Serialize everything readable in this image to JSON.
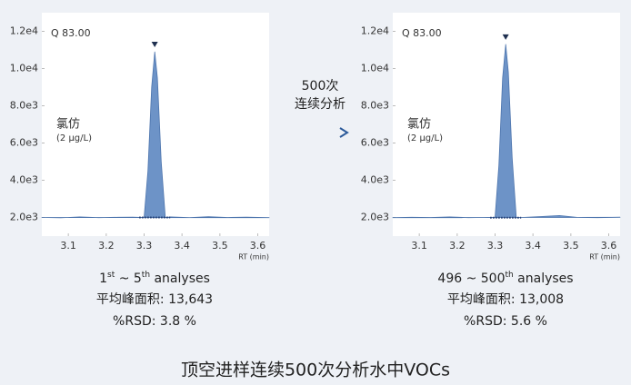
{
  "title": "顶空进样连续500次分析水中VOCs",
  "arrow_label": [
    "500次",
    "连续分析"
  ],
  "chart_data": [
    {
      "type": "area",
      "annotation": "Q 83.00",
      "compound": "氯仿",
      "concentration": "(2 μg/L)",
      "xlabel": "RT (min)",
      "x": [
        3.03,
        3.08,
        3.13,
        3.18,
        3.23,
        3.27,
        3.3,
        3.31,
        3.32,
        3.328,
        3.335,
        3.345,
        3.356,
        3.37,
        3.42,
        3.47,
        3.52,
        3.57,
        3.63
      ],
      "values": [
        2000,
        1980,
        2030,
        1990,
        2010,
        2020,
        2000,
        4500,
        9000,
        10900,
        9500,
        5000,
        2000,
        2030,
        1990,
        2040,
        2000,
        2020,
        1990
      ],
      "color": "#6d93c7",
      "xlim": [
        3.03,
        3.63
      ],
      "xticks": [
        3.1,
        3.2,
        3.3,
        3.4,
        3.5,
        3.6
      ],
      "ylim": [
        1000,
        13000
      ],
      "yticks": [
        {
          "value": 2000,
          "label": "2.0e3"
        },
        {
          "value": 4000,
          "label": "4.0e3"
        },
        {
          "value": 6000,
          "label": "6.0e3"
        },
        {
          "value": 8000,
          "label": "8.0e3"
        },
        {
          "value": 10000,
          "label": "1.0e4"
        },
        {
          "value": 12000,
          "label": "1.2e4"
        }
      ],
      "caption": {
        "run": [
          "1",
          "st",
          " ~ 5",
          "th",
          " analyses"
        ],
        "area": "平均峰面积: 13,643",
        "rsd": "%RSD: 3.8 %"
      }
    },
    {
      "type": "area",
      "annotation": "Q 83.00",
      "compound": "氯仿",
      "concentration": "(2 μg/L)",
      "xlabel": "RT (min)",
      "x": [
        3.03,
        3.08,
        3.13,
        3.18,
        3.23,
        3.27,
        3.3,
        3.31,
        3.32,
        3.328,
        3.335,
        3.345,
        3.356,
        3.37,
        3.42,
        3.47,
        3.52,
        3.57,
        3.63
      ],
      "values": [
        1990,
        2010,
        2000,
        2030,
        1990,
        2000,
        2010,
        4800,
        9500,
        11300,
        9800,
        5200,
        2010,
        2000,
        2050,
        2100,
        2000,
        1990,
        2010
      ],
      "color": "#6d93c7",
      "xlim": [
        3.03,
        3.63
      ],
      "xticks": [
        3.1,
        3.2,
        3.3,
        3.4,
        3.5,
        3.6
      ],
      "ylim": [
        1000,
        13000
      ],
      "yticks": [
        {
          "value": 2000,
          "label": "2.0e3"
        },
        {
          "value": 4000,
          "label": "4.0e3"
        },
        {
          "value": 6000,
          "label": "6.0e3"
        },
        {
          "value": 8000,
          "label": "8.0e3"
        },
        {
          "value": 10000,
          "label": "1.0e4"
        },
        {
          "value": 12000,
          "label": "1.2e4"
        }
      ],
      "caption": {
        "run": [
          "496 ~ 500",
          "th",
          " analyses"
        ],
        "area": "平均峰面积: 13,008",
        "rsd": "%RSD: 5.6 %"
      }
    }
  ]
}
